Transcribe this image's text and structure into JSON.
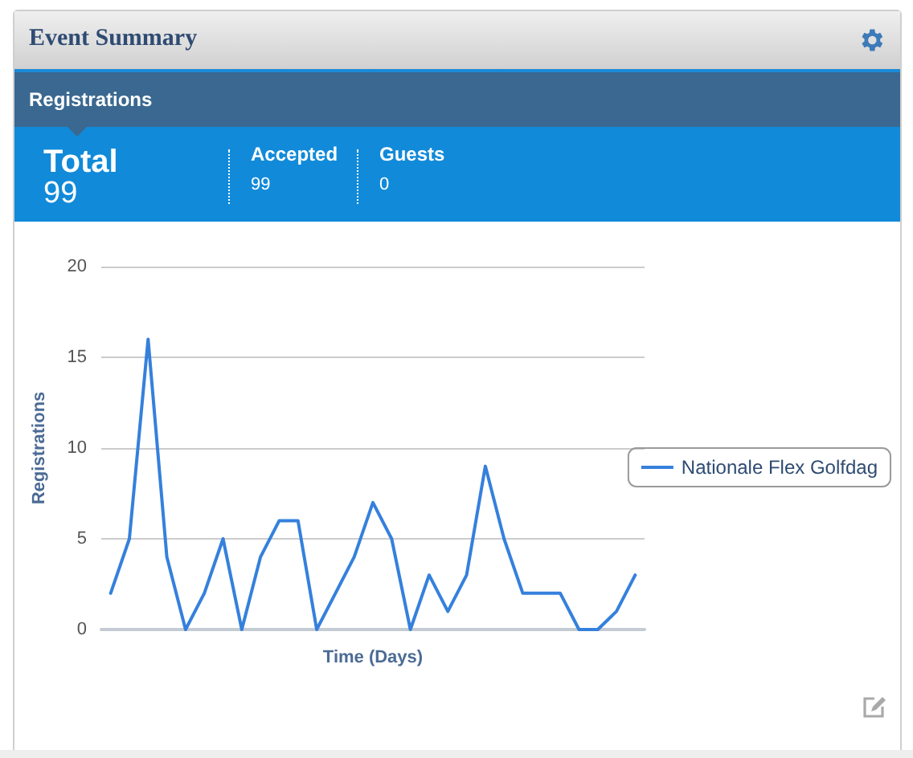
{
  "chart_data": {
    "type": "line",
    "title": "Event Summary",
    "subtitle": "Registrations",
    "annotations": [
      "Total",
      "99",
      "Accepted",
      "99",
      "Guests",
      "0"
    ],
    "xlabel": "Time (Days)",
    "ylabel": "Registrations",
    "categories": [
      null,
      null,
      null,
      null,
      null,
      null,
      null,
      null,
      null,
      null,
      null,
      null,
      null,
      null,
      null,
      null,
      null,
      null,
      null,
      null,
      null,
      null,
      null,
      null,
      null,
      null,
      null,
      null,
      null
    ],
    "series": [
      {
        "name": "Nationale Flex Golfdag",
        "color": "#3580dc",
        "values": [
          2,
          5,
          16,
          4,
          0,
          2,
          5,
          0,
          4,
          6,
          6,
          0,
          2,
          4,
          7,
          5,
          0,
          3,
          1,
          3,
          9,
          5,
          2,
          2,
          2,
          0,
          0,
          1,
          3
        ]
      }
    ],
    "ylim": [
      0,
      20
    ],
    "yticks": [
      0,
      5,
      10,
      15,
      20
    ],
    "grid": "y",
    "legend": "right",
    "marker": "none",
    "line_style": "solid",
    "tick_labels": "y"
  }
}
